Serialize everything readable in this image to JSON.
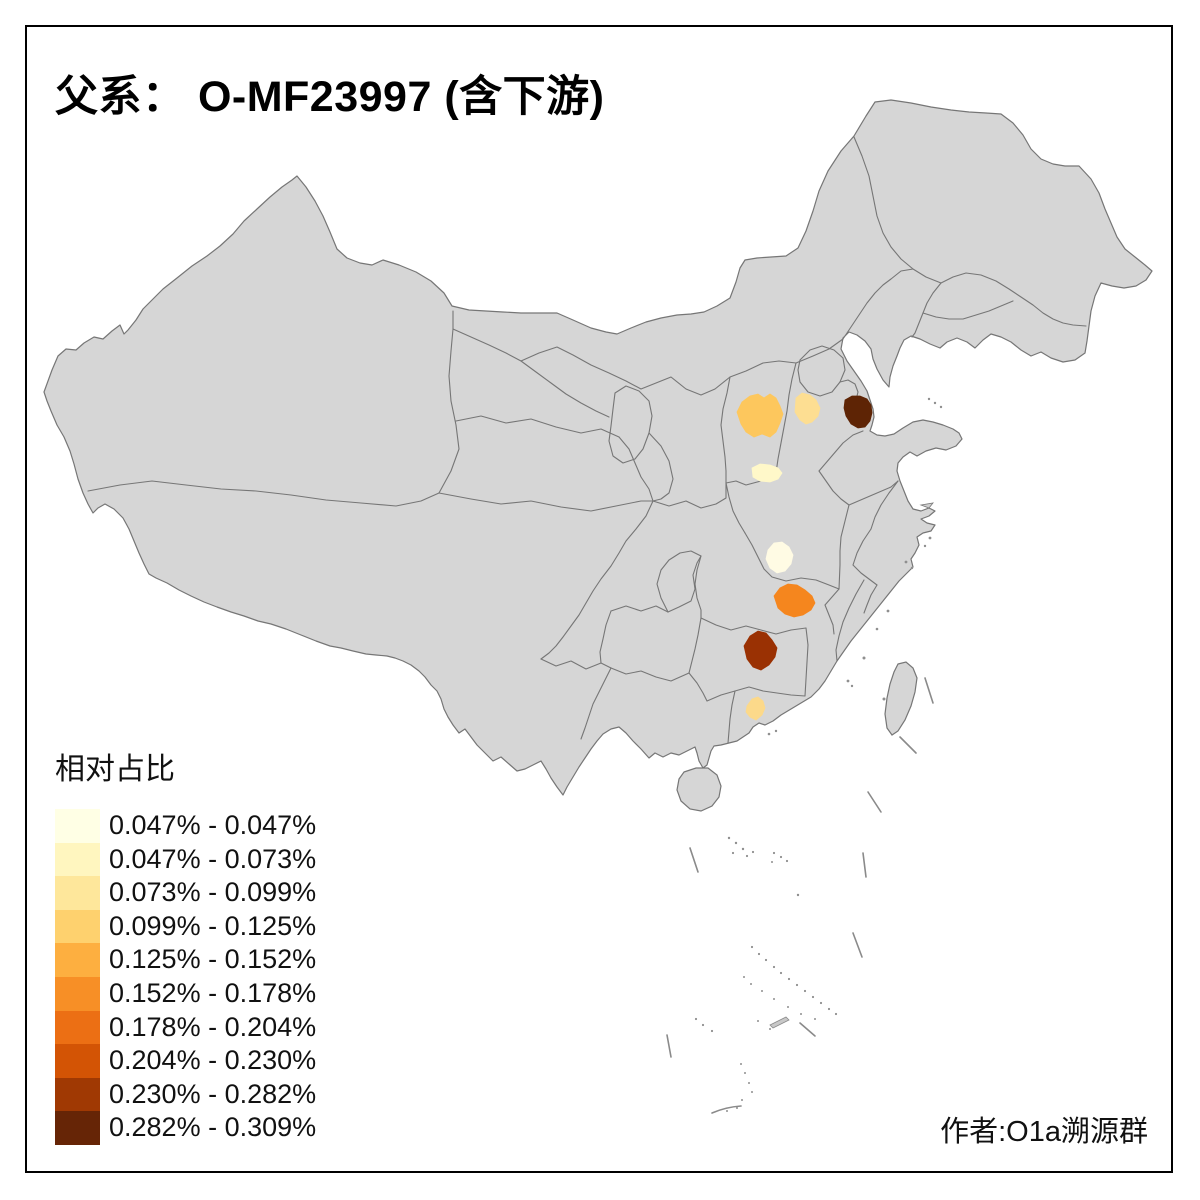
{
  "title": "父系： O-MF23997 (含下游)",
  "attribution": "作者:O1a溯源群",
  "legend": {
    "title": "相对占比",
    "items": [
      {
        "label": "0.047% - 0.047%",
        "color": "#FFFFE5"
      },
      {
        "label": "0.047% - 0.073%",
        "color": "#FFF6BF"
      },
      {
        "label": "0.073% - 0.099%",
        "color": "#FEE79B"
      },
      {
        "label": "0.099% - 0.125%",
        "color": "#FED16E"
      },
      {
        "label": "0.125% - 0.152%",
        "color": "#FDAF40"
      },
      {
        "label": "0.152% - 0.178%",
        "color": "#F78F26"
      },
      {
        "label": "0.178% - 0.204%",
        "color": "#EC6F14"
      },
      {
        "label": "0.204% - 0.230%",
        "color": "#D35405"
      },
      {
        "label": "0.230% - 0.282%",
        "color": "#A03903"
      },
      {
        "label": "0.282% - 0.309%",
        "color": "#662506"
      }
    ]
  },
  "map": {
    "land_color": "#D6D6D6",
    "border_color": "#767676",
    "ocean_color": "#FFFFFF",
    "regions": [
      {
        "id": "region-1",
        "class": "0.047% - 0.047%",
        "color": "#FFFBE4"
      },
      {
        "id": "region-2",
        "class": "0.047% - 0.073%",
        "color": "#FFF8C9"
      },
      {
        "id": "region-3",
        "class": "0.073% - 0.099%",
        "color": "#FDDE92"
      },
      {
        "id": "region-4",
        "class": "0.073% - 0.099%",
        "color": "#FCD98A"
      },
      {
        "id": "region-5",
        "class": "0.099% - 0.125%",
        "color": "#FDC75D"
      },
      {
        "id": "region-6",
        "class": "0.152% - 0.178%",
        "color": "#F5861E"
      },
      {
        "id": "region-7",
        "class": "0.230% - 0.282%",
        "color": "#9A3103"
      },
      {
        "id": "region-8",
        "class": "0.282% - 0.309%",
        "color": "#5E2405"
      }
    ]
  },
  "chart_data": {
    "type": "choropleth",
    "title": "父系： O-MF23997 (含下游)",
    "legend_title": "相对占比",
    "unit": "%",
    "class_breaks": [
      0.047,
      0.047,
      0.073,
      0.099,
      0.125,
      0.152,
      0.178,
      0.204,
      0.23,
      0.282,
      0.309
    ],
    "class_labels": [
      "0.047% - 0.047%",
      "0.047% - 0.073%",
      "0.073% - 0.099%",
      "0.099% - 0.125%",
      "0.125% - 0.152%",
      "0.152% - 0.178%",
      "0.178% - 0.204%",
      "0.204% - 0.230%",
      "0.230% - 0.282%",
      "0.282% - 0.309%"
    ],
    "class_colors": [
      "#FFFFE5",
      "#FFF6BF",
      "#FEE79B",
      "#FED16E",
      "#FDAF40",
      "#F78F26",
      "#EC6F14",
      "#D35405",
      "#A03903",
      "#662506"
    ],
    "highlighted_region_count": 8,
    "value_range": [
      "0.047%",
      "0.309%"
    ]
  }
}
